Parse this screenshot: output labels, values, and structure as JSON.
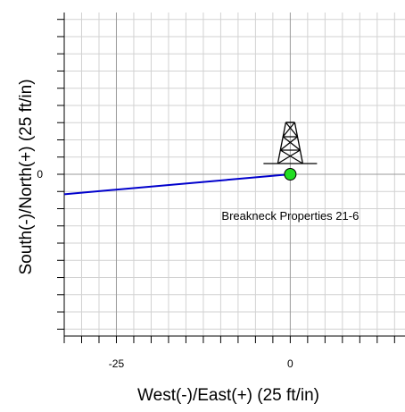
{
  "chart_data": {
    "type": "line",
    "title": "",
    "xlabel": "West(-)/East(+) (25 ft/in)",
    "ylabel": "South(-)/North(+) (25 ft/in)",
    "xlim": [
      -32.5,
      16.5
    ],
    "ylim": [
      -23.5,
      23.5
    ],
    "x_ticks": [
      {
        "value": -25,
        "label": "-25"
      },
      {
        "value": 0,
        "label": "0"
      }
    ],
    "y_ticks": [
      {
        "value": 0,
        "label": "0"
      }
    ],
    "grid": true,
    "series": [
      {
        "x": [
          -32.5,
          0
        ],
        "y": [
          -2.9,
          0
        ],
        "color": "#0000cc"
      }
    ],
    "well": {
      "label": "Breakneck Properties 21-6",
      "x": 0,
      "y": 0,
      "marker_color": "#22dd22",
      "symbol": "derrick-icon"
    }
  }
}
